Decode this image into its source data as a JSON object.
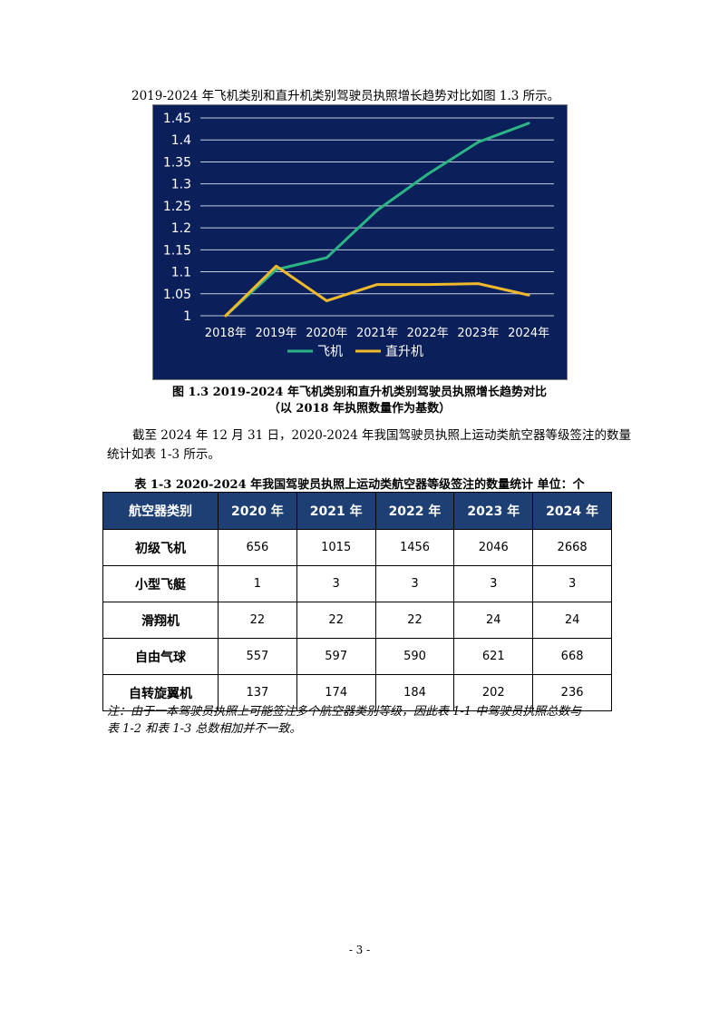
{
  "intro_text": "2019-2024 年飞机类别和直升机类别驾驶员执照增长趋势对比如图 1.3 所示。",
  "chart_data": {
    "type": "line",
    "categories": [
      "2018年",
      "2019年",
      "2020年",
      "2021年",
      "2022年",
      "2023年",
      "2024年"
    ],
    "series": [
      {
        "name": "飞机",
        "color": "#2bb585",
        "values": [
          1.0,
          1.105,
          1.132,
          1.24,
          1.322,
          1.395,
          1.438
        ]
      },
      {
        "name": "直升机",
        "color": "#f0b92b",
        "values": [
          1.0,
          1.113,
          1.034,
          1.071,
          1.071,
          1.073,
          1.047
        ]
      }
    ],
    "yticks": [
      "1",
      "1.05",
      "1.1",
      "1.15",
      "1.2",
      "1.25",
      "1.3",
      "1.35",
      "1.4",
      "1.45"
    ],
    "ylim": [
      1,
      1.45
    ],
    "grid": true,
    "legend": "bottom",
    "background": "#0b1f5a"
  },
  "caption_line1": "图 1.3 2019-2024 年飞机类别和直升机类别驾驶员执照增长趋势对比",
  "caption_line2": "（以 2018 年执照数量作为基数）",
  "para_line1": "截至 2024 年 12 月 31 日，2020-2024 年我国驾驶员执照上运动类航空器等级签注的数量",
  "para_line2": "统计如表 1-3 所示。",
  "table_title": "表 1-3 2020-2024 年我国驾驶员执照上运动类航空器等级签注的数量统计    单位：个",
  "table": {
    "header_color": "#1d3f73",
    "headers": [
      "航空器类别",
      "2020 年",
      "2021 年",
      "2022 年",
      "2023 年",
      "2024 年"
    ],
    "rows": [
      [
        "初级飞机",
        "656",
        "1015",
        "1456",
        "2046",
        "2668"
      ],
      [
        "小型飞艇",
        "1",
        "3",
        "3",
        "3",
        "3"
      ],
      [
        "滑翔机",
        "22",
        "22",
        "22",
        "24",
        "24"
      ],
      [
        "自由气球",
        "557",
        "597",
        "590",
        "621",
        "668"
      ],
      [
        "自转旋翼机",
        "137",
        "174",
        "184",
        "202",
        "236"
      ]
    ]
  },
  "note_line1": "注：由于一本驾驶员执照上可能签注多个航空器类别等级，因此表 1-1 中驾驶员执照总数与",
  "note_line2": "表 1-2 和表 1-3 总数相加并不一致。",
  "page_number": "- 3 -"
}
